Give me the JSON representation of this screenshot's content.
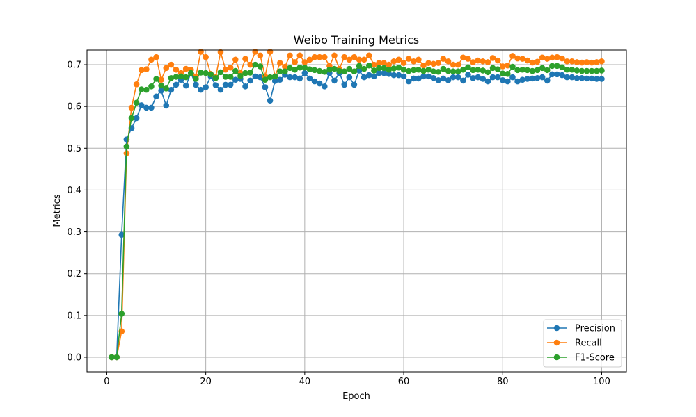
{
  "chart_data": {
    "type": "line",
    "title": "Weibo Training Metrics",
    "xlabel": "Epoch",
    "ylabel": "Metrics",
    "xlim": [
      -4,
      105
    ],
    "ylim": [
      -0.035,
      0.735
    ],
    "x_ticks": [
      0,
      20,
      40,
      60,
      80,
      100
    ],
    "y_ticks": [
      0.0,
      0.1,
      0.2,
      0.3,
      0.4,
      0.5,
      0.6,
      0.7
    ],
    "x_tick_labels": [
      "0",
      "20",
      "40",
      "60",
      "80",
      "100"
    ],
    "y_tick_labels": [
      "0.0",
      "0.1",
      "0.2",
      "0.3",
      "0.4",
      "0.5",
      "0.6",
      "0.7"
    ],
    "grid": true,
    "legend_position": "lower-right",
    "x": [
      1,
      2,
      3,
      4,
      5,
      6,
      7,
      8,
      9,
      10,
      11,
      12,
      13,
      14,
      15,
      16,
      17,
      18,
      19,
      20,
      21,
      22,
      23,
      24,
      25,
      26,
      27,
      28,
      29,
      30,
      31,
      32,
      33,
      34,
      35,
      36,
      37,
      38,
      39,
      40,
      41,
      42,
      43,
      44,
      45,
      46,
      47,
      48,
      49,
      50,
      51,
      52,
      53,
      54,
      55,
      56,
      57,
      58,
      59,
      60,
      61,
      62,
      63,
      64,
      65,
      66,
      67,
      68,
      69,
      70,
      71,
      72,
      73,
      74,
      75,
      76,
      77,
      78,
      79,
      80,
      81,
      82,
      83,
      84,
      85,
      86,
      87,
      88,
      89,
      90,
      91,
      92,
      93,
      94,
      95,
      96,
      97,
      98,
      99,
      100
    ],
    "series": [
      {
        "name": "Precision",
        "color": "#1f77b4",
        "values": [
          0.0,
          0.0,
          0.293,
          0.521,
          0.548,
          0.572,
          0.603,
          0.597,
          0.597,
          0.624,
          0.638,
          0.602,
          0.64,
          0.652,
          0.664,
          0.65,
          0.68,
          0.652,
          0.64,
          0.646,
          0.672,
          0.651,
          0.64,
          0.652,
          0.652,
          0.664,
          0.666,
          0.648,
          0.662,
          0.672,
          0.67,
          0.646,
          0.614,
          0.661,
          0.664,
          0.676,
          0.67,
          0.67,
          0.667,
          0.68,
          0.667,
          0.66,
          0.655,
          0.648,
          0.68,
          0.662,
          0.68,
          0.652,
          0.67,
          0.652,
          0.686,
          0.67,
          0.675,
          0.672,
          0.68,
          0.68,
          0.678,
          0.675,
          0.675,
          0.672,
          0.66,
          0.667,
          0.667,
          0.672,
          0.672,
          0.668,
          0.663,
          0.667,
          0.663,
          0.67,
          0.67,
          0.662,
          0.676,
          0.668,
          0.67,
          0.666,
          0.66,
          0.67,
          0.67,
          0.663,
          0.66,
          0.67,
          0.66,
          0.664,
          0.666,
          0.667,
          0.668,
          0.67,
          0.662,
          0.677,
          0.677,
          0.675,
          0.67,
          0.67,
          0.668,
          0.668,
          0.667,
          0.667,
          0.666,
          0.666
        ]
      },
      {
        "name": "Recall",
        "color": "#ff7f0e",
        "values": [
          0.0,
          0.0,
          0.062,
          0.488,
          0.597,
          0.653,
          0.687,
          0.689,
          0.712,
          0.718,
          0.664,
          0.692,
          0.7,
          0.688,
          0.68,
          0.69,
          0.688,
          0.672,
          0.731,
          0.718,
          0.678,
          0.67,
          0.73,
          0.688,
          0.693,
          0.712,
          0.68,
          0.714,
          0.7,
          0.731,
          0.722,
          0.672,
          0.731,
          0.672,
          0.704,
          0.695,
          0.722,
          0.706,
          0.722,
          0.706,
          0.712,
          0.718,
          0.718,
          0.718,
          0.697,
          0.722,
          0.69,
          0.718,
          0.712,
          0.718,
          0.712,
          0.712,
          0.722,
          0.7,
          0.704,
          0.704,
          0.7,
          0.708,
          0.712,
          0.704,
          0.714,
          0.708,
          0.712,
          0.698,
          0.704,
          0.702,
          0.704,
          0.714,
          0.708,
          0.7,
          0.7,
          0.717,
          0.714,
          0.706,
          0.71,
          0.708,
          0.706,
          0.716,
          0.71,
          0.696,
          0.698,
          0.721,
          0.715,
          0.714,
          0.71,
          0.705,
          0.707,
          0.717,
          0.714,
          0.717,
          0.718,
          0.715,
          0.708,
          0.708,
          0.706,
          0.705,
          0.706,
          0.705,
          0.706,
          0.708
        ]
      },
      {
        "name": "F1-Score",
        "color": "#2ca02c",
        "values": [
          0.0,
          0.0,
          0.104,
          0.504,
          0.572,
          0.609,
          0.641,
          0.64,
          0.648,
          0.666,
          0.65,
          0.643,
          0.668,
          0.671,
          0.672,
          0.67,
          0.68,
          0.666,
          0.681,
          0.68,
          0.677,
          0.668,
          0.682,
          0.671,
          0.671,
          0.685,
          0.673,
          0.68,
          0.681,
          0.7,
          0.696,
          0.664,
          0.67,
          0.672,
          0.684,
          0.684,
          0.692,
          0.688,
          0.693,
          0.693,
          0.689,
          0.687,
          0.685,
          0.683,
          0.688,
          0.69,
          0.685,
          0.684,
          0.69,
          0.684,
          0.697,
          0.69,
          0.698,
          0.686,
          0.692,
          0.692,
          0.688,
          0.691,
          0.693,
          0.688,
          0.685,
          0.687,
          0.688,
          0.685,
          0.688,
          0.684,
          0.683,
          0.69,
          0.685,
          0.684,
          0.684,
          0.688,
          0.694,
          0.687,
          0.688,
          0.686,
          0.682,
          0.692,
          0.689,
          0.679,
          0.678,
          0.695,
          0.687,
          0.688,
          0.687,
          0.685,
          0.687,
          0.692,
          0.687,
          0.697,
          0.697,
          0.694,
          0.688,
          0.688,
          0.686,
          0.685,
          0.685,
          0.685,
          0.685,
          0.686
        ]
      }
    ]
  }
}
